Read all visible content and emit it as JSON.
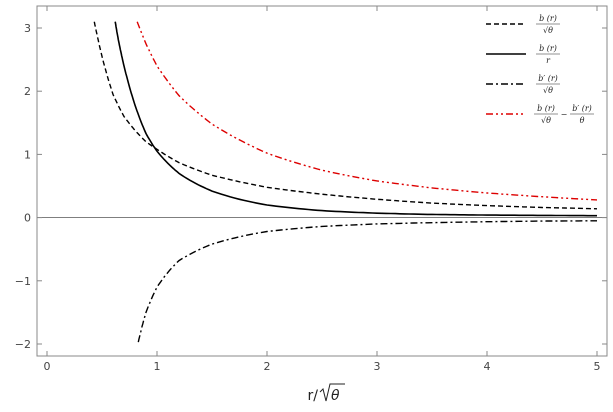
{
  "chart_data": {
    "type": "line",
    "title": "",
    "xlabel": "r/√θ",
    "xlabel_parts": {
      "prefix": "r/",
      "radicand": "θ"
    },
    "ylabel": "",
    "xlim": [
      0,
      5
    ],
    "ylim": [
      -2.2,
      3.2
    ],
    "xticks": [
      0,
      1,
      2,
      3,
      4,
      5
    ],
    "yticks": [
      -2,
      -1,
      0,
      1,
      2,
      3
    ],
    "xtick_labels": [
      "0",
      "1",
      "2",
      "3",
      "4",
      "5"
    ],
    "ytick_labels": [
      "−2",
      "−1",
      "0",
      "1",
      "2",
      "3"
    ],
    "grid": false,
    "frame": true,
    "zero_line": true,
    "legend_position": "top-right",
    "series": [
      {
        "legend": {
          "kind": "fraction",
          "num": "b (r)",
          "den": "√θ"
        },
        "color": "#000000",
        "style": "dashed",
        "x": [
          0.43,
          0.5,
          0.6,
          0.7,
          0.8,
          0.9,
          1.0,
          1.2,
          1.5,
          2.0,
          2.5,
          3.0,
          3.5,
          4.0,
          4.5,
          5.0
        ],
        "y": [
          3.1,
          2.55,
          1.95,
          1.6,
          1.38,
          1.2,
          1.08,
          0.87,
          0.67,
          0.48,
          0.37,
          0.29,
          0.23,
          0.19,
          0.16,
          0.14
        ]
      },
      {
        "legend": {
          "kind": "fraction",
          "num": "b (r)",
          "den": "r"
        },
        "color": "#000000",
        "style": "solid",
        "x": [
          0.62,
          0.65,
          0.7,
          0.8,
          0.9,
          1.0,
          1.2,
          1.5,
          2.0,
          2.5,
          3.0,
          3.5,
          4.0,
          4.5,
          5.0
        ],
        "y": [
          3.1,
          2.8,
          2.4,
          1.78,
          1.33,
          1.05,
          0.7,
          0.42,
          0.2,
          0.11,
          0.07,
          0.05,
          0.04,
          0.035,
          0.03
        ]
      },
      {
        "legend": {
          "kind": "fraction",
          "num": "b′ (r)",
          "den": "√θ"
        },
        "color": "#000000",
        "style": "dashdot",
        "x": [
          0.83,
          0.9,
          1.0,
          1.2,
          1.5,
          2.0,
          2.5,
          3.0,
          3.5,
          4.0,
          4.5,
          5.0
        ],
        "y": [
          -1.97,
          -1.5,
          -1.1,
          -0.68,
          -0.42,
          -0.22,
          -0.14,
          -0.1,
          -0.08,
          -0.065,
          -0.055,
          -0.05
        ]
      },
      {
        "legend": {
          "kind": "difference",
          "num1": "b (r)",
          "den1": "√θ",
          "num2": "b′ (r)",
          "den2": "θ"
        },
        "color": "#dd0000",
        "style": "dashdotdot",
        "x": [
          0.82,
          0.9,
          1.0,
          1.2,
          1.5,
          2.0,
          2.5,
          3.0,
          3.5,
          4.0,
          4.5,
          5.0
        ],
        "y": [
          3.1,
          2.75,
          2.4,
          1.93,
          1.48,
          1.02,
          0.75,
          0.58,
          0.47,
          0.39,
          0.33,
          0.28
        ]
      }
    ]
  }
}
